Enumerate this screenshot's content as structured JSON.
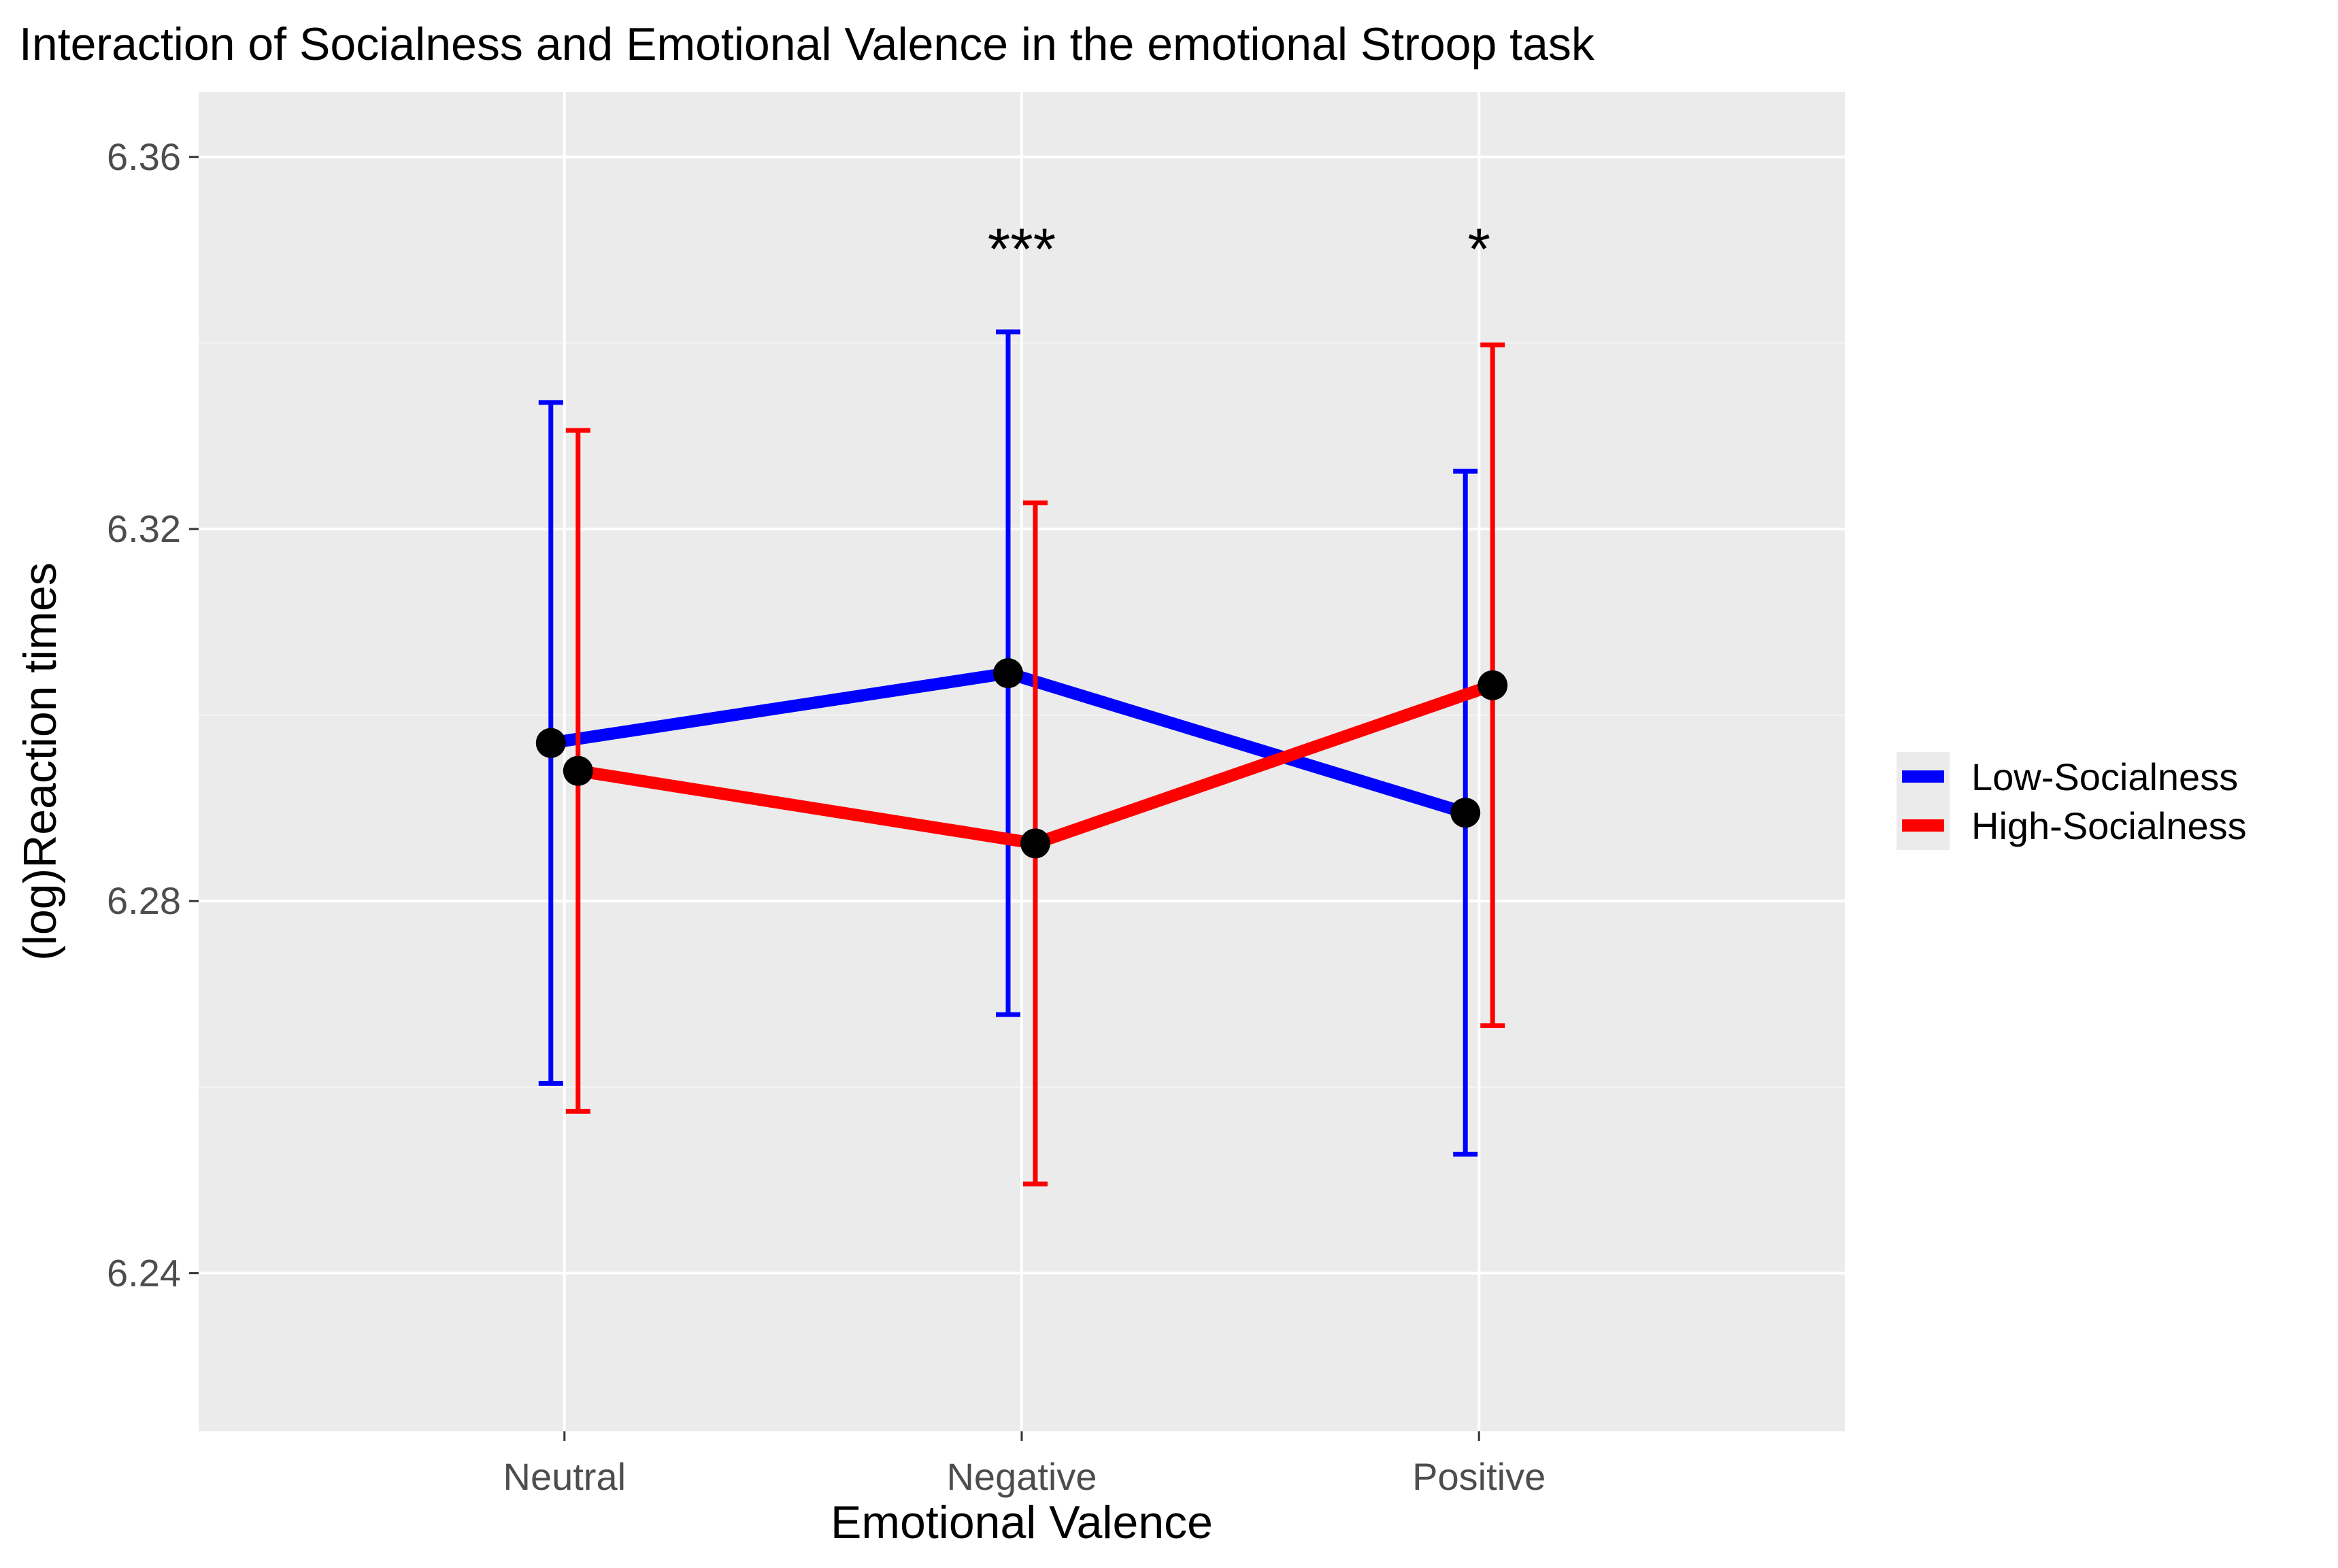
{
  "chart_data": {
    "type": "line",
    "title": "Interaction of Socialness and Emotional Valence in the emotional Stroop task",
    "xlabel": "Emotional Valence",
    "ylabel": "(log)Reaction times",
    "categories": [
      "Neutral",
      "Negative",
      "Positive"
    ],
    "ylim": [
      6.223,
      6.367
    ],
    "yticks": [
      6.24,
      6.28,
      6.32,
      6.36
    ],
    "ytick_labels": [
      "6.24",
      "6.28",
      "6.32",
      "6.36"
    ],
    "grid": true,
    "legend_position": "right",
    "series": [
      {
        "name": "Low-Socialness",
        "color": "#0000ff",
        "values": [
          6.297,
          6.3045,
          6.2895
        ],
        "lower": [
          6.2604,
          6.2678,
          6.2528
        ],
        "upper": [
          6.3336,
          6.3412,
          6.3262
        ]
      },
      {
        "name": "High-Socialness",
        "color": "#ff0000",
        "values": [
          6.294,
          6.2862,
          6.3032
        ],
        "lower": [
          6.2574,
          6.2496,
          6.2666
        ],
        "upper": [
          6.3306,
          6.3228,
          6.3398
        ]
      }
    ],
    "annotations": [
      {
        "category": "Negative",
        "text": "***",
        "y": 6.351
      },
      {
        "category": "Positive",
        "text": "*",
        "y": 6.351
      }
    ]
  }
}
